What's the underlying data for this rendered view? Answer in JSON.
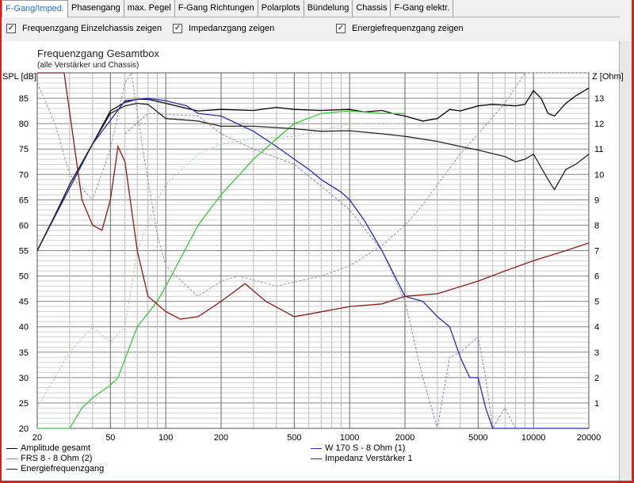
{
  "tabs": [
    "F-Gang/Imped.",
    "Phasengang",
    "max. Pegel",
    "F-Gang Richtungen",
    "Polarplots",
    "Bündelung",
    "Chassis",
    "F-Gang elektr."
  ],
  "checkboxes": [
    {
      "label": "Frequenzgang Einzelchassis zeigen",
      "checked": true
    },
    {
      "label": "Impedanzgang zeigen",
      "checked": true
    },
    {
      "label": "Energiefrequenzgang zeigen",
      "checked": true
    }
  ],
  "check_mark": "✓",
  "chart_data": {
    "type": "line",
    "title": "Frequenzgang Gesamtbox",
    "subtitle": "(alle Verstärker und Chassis)",
    "ylabel": "SPL [dB]",
    "y2label": "Z [Ohm]",
    "xscale": "log",
    "xlim": [
      20,
      20000
    ],
    "ylim": [
      20,
      90
    ],
    "y2lim": [
      0,
      14
    ],
    "xticks": [
      "20",
      "50",
      "100",
      "200",
      "500",
      "1000",
      "2000",
      "5000",
      "10000",
      "20000"
    ],
    "yticks": [
      "20",
      "25",
      "30",
      "35",
      "40",
      "45",
      "50",
      "55",
      "60",
      "65",
      "70",
      "75",
      "80",
      "85"
    ],
    "y2ticks": [
      "1",
      "2",
      "3",
      "4",
      "5",
      "6",
      "7",
      "8",
      "9",
      "10",
      "11",
      "12",
      "13"
    ],
    "grid": true,
    "legend_placement": "bottom",
    "series": [
      {
        "name": "Amplitude gesamt",
        "color": "#000000",
        "axis": "left",
        "points": [
          [
            20,
            55
          ],
          [
            25,
            62
          ],
          [
            30,
            68
          ],
          [
            40,
            76
          ],
          [
            50,
            82.5
          ],
          [
            60,
            84.2
          ],
          [
            70,
            84.8
          ],
          [
            80,
            84.8
          ],
          [
            100,
            84
          ],
          [
            130,
            83
          ],
          [
            150,
            82.5
          ],
          [
            200,
            82.8
          ],
          [
            300,
            82.6
          ],
          [
            400,
            83.2
          ],
          [
            500,
            82.8
          ],
          [
            700,
            82.6
          ],
          [
            1000,
            82.8
          ],
          [
            1200,
            82.3
          ],
          [
            1500,
            82.6
          ],
          [
            1800,
            81.8
          ],
          [
            2000,
            81.5
          ],
          [
            2500,
            80.5
          ],
          [
            3000,
            81
          ],
          [
            3500,
            82.8
          ],
          [
            4000,
            82.5
          ],
          [
            5000,
            83.5
          ],
          [
            6000,
            83.8
          ],
          [
            8000,
            83.5
          ],
          [
            9000,
            83.8
          ],
          [
            10000,
            86.5
          ],
          [
            11000,
            85
          ],
          [
            12000,
            82
          ],
          [
            13000,
            81.5
          ],
          [
            15000,
            84
          ],
          [
            17000,
            85.5
          ],
          [
            20000,
            87
          ]
        ]
      },
      {
        "name": "W 170 S - 8 Ohm (1)",
        "color": "#2b2bb0",
        "axis": "left",
        "points": [
          [
            20,
            55
          ],
          [
            40,
            76
          ],
          [
            60,
            84.5
          ],
          [
            80,
            85
          ],
          [
            100,
            84.5
          ],
          [
            130,
            83.5
          ],
          [
            150,
            82
          ],
          [
            200,
            81.5
          ],
          [
            300,
            78.5
          ],
          [
            400,
            75.5
          ],
          [
            500,
            73
          ],
          [
            600,
            71
          ],
          [
            700,
            69
          ],
          [
            900,
            66.5
          ],
          [
            1000,
            65
          ],
          [
            1200,
            61
          ],
          [
            1500,
            55
          ],
          [
            2000,
            46
          ],
          [
            2500,
            45
          ],
          [
            3000,
            42
          ],
          [
            3500,
            40
          ],
          [
            4000,
            34
          ],
          [
            4500,
            30
          ],
          [
            5000,
            30
          ],
          [
            5500,
            24
          ],
          [
            6000,
            20
          ],
          [
            20000,
            20
          ]
        ]
      },
      {
        "name": "FRS 8 - 8 Ohm (2)",
        "color": "#3cc83c",
        "axis": "left",
        "points": [
          [
            20,
            20
          ],
          [
            30,
            20
          ],
          [
            35,
            24
          ],
          [
            40,
            26
          ],
          [
            50,
            28.5
          ],
          [
            55,
            30
          ],
          [
            70,
            40
          ],
          [
            90,
            45
          ],
          [
            100,
            48
          ],
          [
            150,
            60
          ],
          [
            200,
            66
          ],
          [
            300,
            73
          ],
          [
            400,
            77
          ],
          [
            500,
            80
          ],
          [
            700,
            82
          ],
          [
            1000,
            82.5
          ],
          [
            1500,
            82
          ],
          [
            2000,
            82
          ]
        ]
      },
      {
        "name": "Impedanz Verstärker 1",
        "color": "#8b1a1a",
        "axis": "right",
        "points": [
          [
            20,
            14.5
          ],
          [
            28,
            14
          ],
          [
            35,
            9
          ],
          [
            40,
            8
          ],
          [
            45,
            7.8
          ],
          [
            50,
            9
          ],
          [
            55,
            11.1
          ],
          [
            60,
            10.5
          ],
          [
            70,
            7
          ],
          [
            80,
            5.2
          ],
          [
            100,
            4.6
          ],
          [
            120,
            4.3
          ],
          [
            150,
            4.4
          ],
          [
            200,
            5
          ],
          [
            270,
            5.7
          ],
          [
            350,
            5
          ],
          [
            500,
            4.4
          ],
          [
            600,
            4.5
          ],
          [
            1000,
            4.8
          ],
          [
            1500,
            4.9
          ],
          [
            2000,
            5.2
          ],
          [
            3000,
            5.3
          ],
          [
            5000,
            5.8
          ],
          [
            7000,
            6.2
          ],
          [
            10000,
            6.6
          ],
          [
            15000,
            7
          ],
          [
            20000,
            7.3
          ]
        ]
      },
      {
        "name": "Energiefrequenzgang",
        "color": "#222222",
        "axis": "left",
        "points": [
          [
            20,
            55
          ],
          [
            25,
            62
          ],
          [
            30,
            68
          ],
          [
            40,
            76
          ],
          [
            50,
            82
          ],
          [
            60,
            83.5
          ],
          [
            70,
            84
          ],
          [
            80,
            83.8
          ],
          [
            100,
            81
          ],
          [
            150,
            80.5
          ],
          [
            200,
            79.5
          ],
          [
            300,
            79.5
          ],
          [
            500,
            79
          ],
          [
            700,
            78.5
          ],
          [
            1000,
            78.6
          ],
          [
            1500,
            78
          ],
          [
            2000,
            77.5
          ],
          [
            3000,
            76.5
          ],
          [
            4000,
            75.5
          ],
          [
            5000,
            74.8
          ],
          [
            7000,
            73.5
          ],
          [
            8000,
            72.5
          ],
          [
            9000,
            73
          ],
          [
            10000,
            74
          ],
          [
            12000,
            69
          ],
          [
            13000,
            67
          ],
          [
            15000,
            71
          ],
          [
            17000,
            72
          ],
          [
            20000,
            74
          ]
        ]
      }
    ],
    "dashed_series": [
      {
        "color": "#9a9aaa",
        "points": [
          [
            20,
            88
          ],
          [
            25,
            80
          ],
          [
            30,
            70
          ],
          [
            40,
            65
          ],
          [
            50,
            75
          ],
          [
            60,
            88
          ],
          [
            65,
            90
          ],
          [
            75,
            75
          ],
          [
            90,
            58
          ],
          [
            100,
            52
          ],
          [
            130,
            48
          ],
          [
            150,
            46
          ],
          [
            200,
            49
          ],
          [
            250,
            50
          ],
          [
            400,
            48
          ],
          [
            700,
            50
          ],
          [
            1000,
            52
          ],
          [
            1500,
            56
          ],
          [
            2000,
            60
          ],
          [
            2500,
            64
          ],
          [
            3000,
            68
          ],
          [
            4000,
            74
          ],
          [
            5000,
            78
          ],
          [
            7000,
            84
          ],
          [
            9000,
            90
          ],
          [
            20000,
            90
          ]
        ]
      },
      {
        "color": "#a8d8a8",
        "points": [
          [
            20,
            24
          ],
          [
            30,
            35
          ],
          [
            40,
            40
          ],
          [
            50,
            37
          ],
          [
            60,
            40
          ],
          [
            70,
            55
          ],
          [
            90,
            65
          ],
          [
            100,
            68
          ],
          [
            150,
            74
          ],
          [
            200,
            76
          ],
          [
            300,
            77
          ],
          [
            500,
            77.5
          ],
          [
            1000,
            80
          ],
          [
            2000,
            80
          ]
        ]
      },
      {
        "color": "#8888cc",
        "points": [
          [
            60,
            78
          ],
          [
            80,
            82
          ],
          [
            150,
            81.5
          ],
          [
            200,
            78
          ],
          [
            300,
            75
          ],
          [
            500,
            72
          ],
          [
            800,
            66
          ],
          [
            1000,
            63
          ],
          [
            1500,
            55
          ],
          [
            2000,
            45
          ],
          [
            2500,
            30
          ],
          [
            3000,
            20
          ],
          [
            3500,
            34
          ],
          [
            4000,
            35
          ],
          [
            5000,
            38
          ],
          [
            5500,
            30
          ],
          [
            6000,
            20
          ],
          [
            7000,
            24
          ],
          [
            8000,
            20
          ]
        ]
      }
    ]
  }
}
